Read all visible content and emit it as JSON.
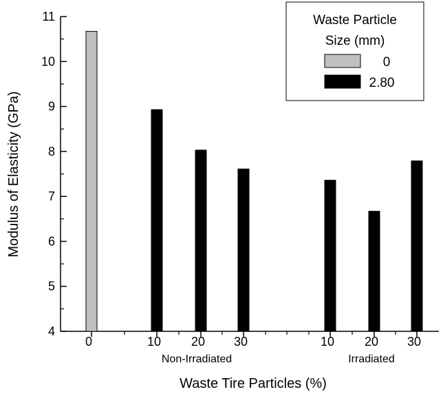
{
  "chart_data": {
    "type": "bar",
    "xlabel": "Waste Tire Particles (%)",
    "ylabel": "Modulus of Elasticity (GPa)",
    "ylim": [
      4,
      11
    ],
    "yticks": [
      "4",
      "5",
      "6",
      "7",
      "8",
      "9",
      "10",
      "11"
    ],
    "bars": [
      {
        "category": "0",
        "value": 10.67,
        "series": "0"
      },
      {
        "category": "10",
        "value": 8.93,
        "series": "2.80"
      },
      {
        "category": "20",
        "value": 8.03,
        "series": "2.80"
      },
      {
        "category": "30",
        "value": 7.61,
        "series": "2.80"
      },
      {
        "category": "10",
        "value": 7.36,
        "series": "2.80"
      },
      {
        "category": "20",
        "value": 6.67,
        "series": "2.80"
      },
      {
        "category": "30",
        "value": 7.79,
        "series": "2.80"
      }
    ],
    "group_labels": [
      "Non-Irradiated",
      "Irradiated"
    ],
    "legend": {
      "title_line1": "Waste Particle",
      "title_line2": "Size (mm)",
      "placement": "top-right",
      "entries": [
        {
          "label": "0",
          "color": "#c0c0c0"
        },
        {
          "label": "2.80",
          "color": "#000000"
        }
      ]
    },
    "series": [
      {
        "name": "0",
        "color": "#c0c0c0"
      },
      {
        "name": "2.80",
        "color": "#000000"
      }
    ]
  }
}
